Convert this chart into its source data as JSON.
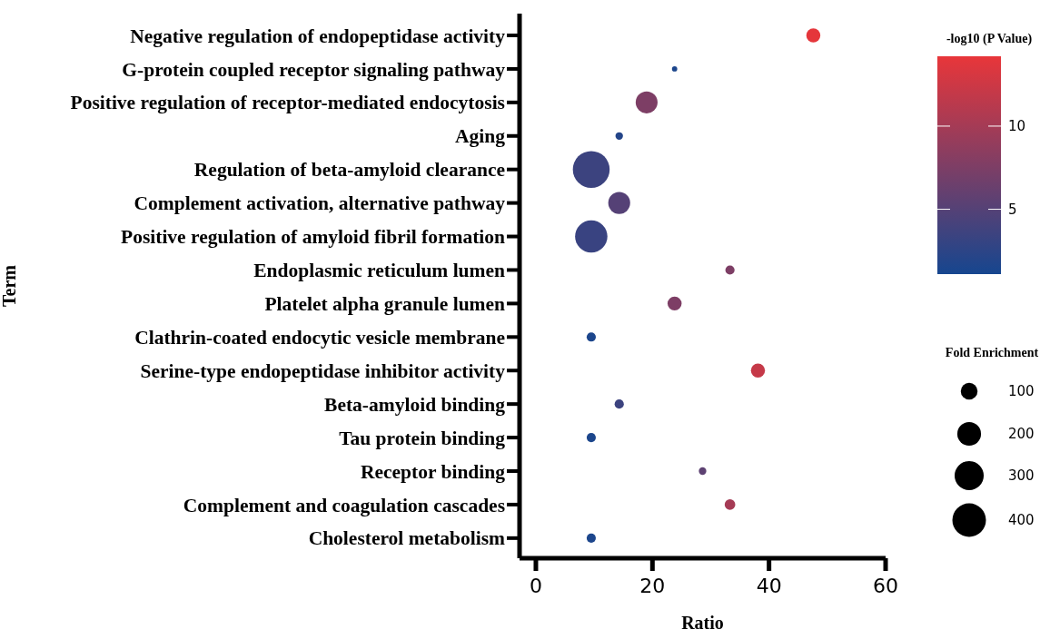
{
  "chart_data": {
    "type": "bubble",
    "xlabel": "Ratio",
    "ylabel": "Term",
    "legend_title": "Fold Enrichment",
    "clabel": "-log10 (P Value)",
    "categories": [
      "Negative regulation of endopeptidase activity",
      "G-protein coupled receptor signaling pathway",
      "Positive regulation of receptor-mediated endocytosis",
      "Aging",
      "Regulation of beta-amyloid clearance",
      "Complement activation, alternative pathway",
      "Positive regulation of amyloid fibril formation",
      "Endoplasmic reticulum lumen",
      "Platelet alpha granule lumen",
      "Clathrin-coated endocytic vesicle membrane",
      "Serine-type endopeptidase inhibitor activity",
      "Beta-amyloid binding",
      "Tau protein binding",
      "Receptor binding",
      "Complement and coagulation cascades",
      "Cholesterol metabolism"
    ],
    "values": [
      47.6,
      23.8,
      19.0,
      14.3,
      9.5,
      14.3,
      9.5,
      33.3,
      23.8,
      9.5,
      38.1,
      14.3,
      9.5,
      28.6,
      33.3,
      9.5
    ],
    "sizes": [
      70,
      10,
      170,
      20,
      480,
      170,
      370,
      30,
      70,
      30,
      70,
      30,
      30,
      20,
      40,
      30
    ],
    "cvalues": [
      14,
      1.5,
      7.5,
      2,
      3.5,
      5,
      3.3,
      7.5,
      7.5,
      1.5,
      12,
      3.5,
      1.5,
      5.5,
      10,
      1.5
    ],
    "size_legend": [
      100,
      200,
      300,
      400
    ],
    "clim": [
      1.1,
      14.2
    ],
    "cticks": [
      5,
      10
    ],
    "xlim": [
      -2.8,
      60
    ],
    "xticks": [
      0,
      20,
      40,
      60
    ],
    "orientation": "horizontal"
  }
}
